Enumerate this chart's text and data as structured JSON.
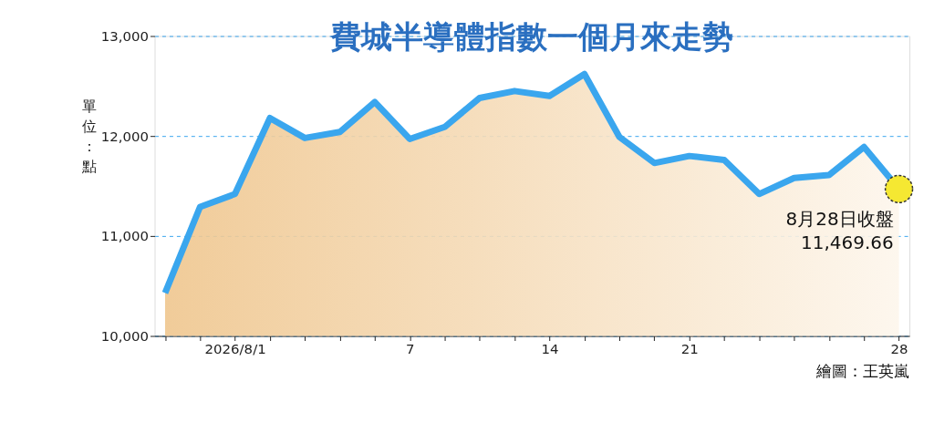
{
  "chart_data": {
    "type": "area",
    "title": "費城半導體指數一個月來走勢",
    "ylabel": "單位：點",
    "categories": [
      null,
      null,
      "2026/8/1",
      null,
      null,
      null,
      null,
      "7",
      null,
      null,
      null,
      "14",
      null,
      null,
      null,
      "21",
      null,
      null,
      null,
      null,
      null,
      "28"
    ],
    "series": [
      {
        "color": "#3aa6ee",
        "values": [
          10430,
          11290,
          11420,
          12180,
          11980,
          12040,
          12340,
          11970,
          12090,
          12380,
          12450,
          12400,
          12620,
          11990,
          11730,
          11800,
          11760,
          11420,
          11580,
          11610,
          11890,
          11469.66
        ]
      }
    ],
    "ylim": [
      10000,
      13000
    ],
    "yticks": [
      {
        "value": 10000,
        "label": "10,000"
      },
      {
        "value": 11000,
        "label": "11,000"
      },
      {
        "value": 12000,
        "label": "12,000"
      },
      {
        "value": 13000,
        "label": "13,000"
      }
    ],
    "grid": "y",
    "annotations": [
      {
        "text": "8月28日收盤\n11,469.66",
        "x": "28",
        "y": 11469.66
      },
      "繪圖：王英嵐"
    ]
  }
}
